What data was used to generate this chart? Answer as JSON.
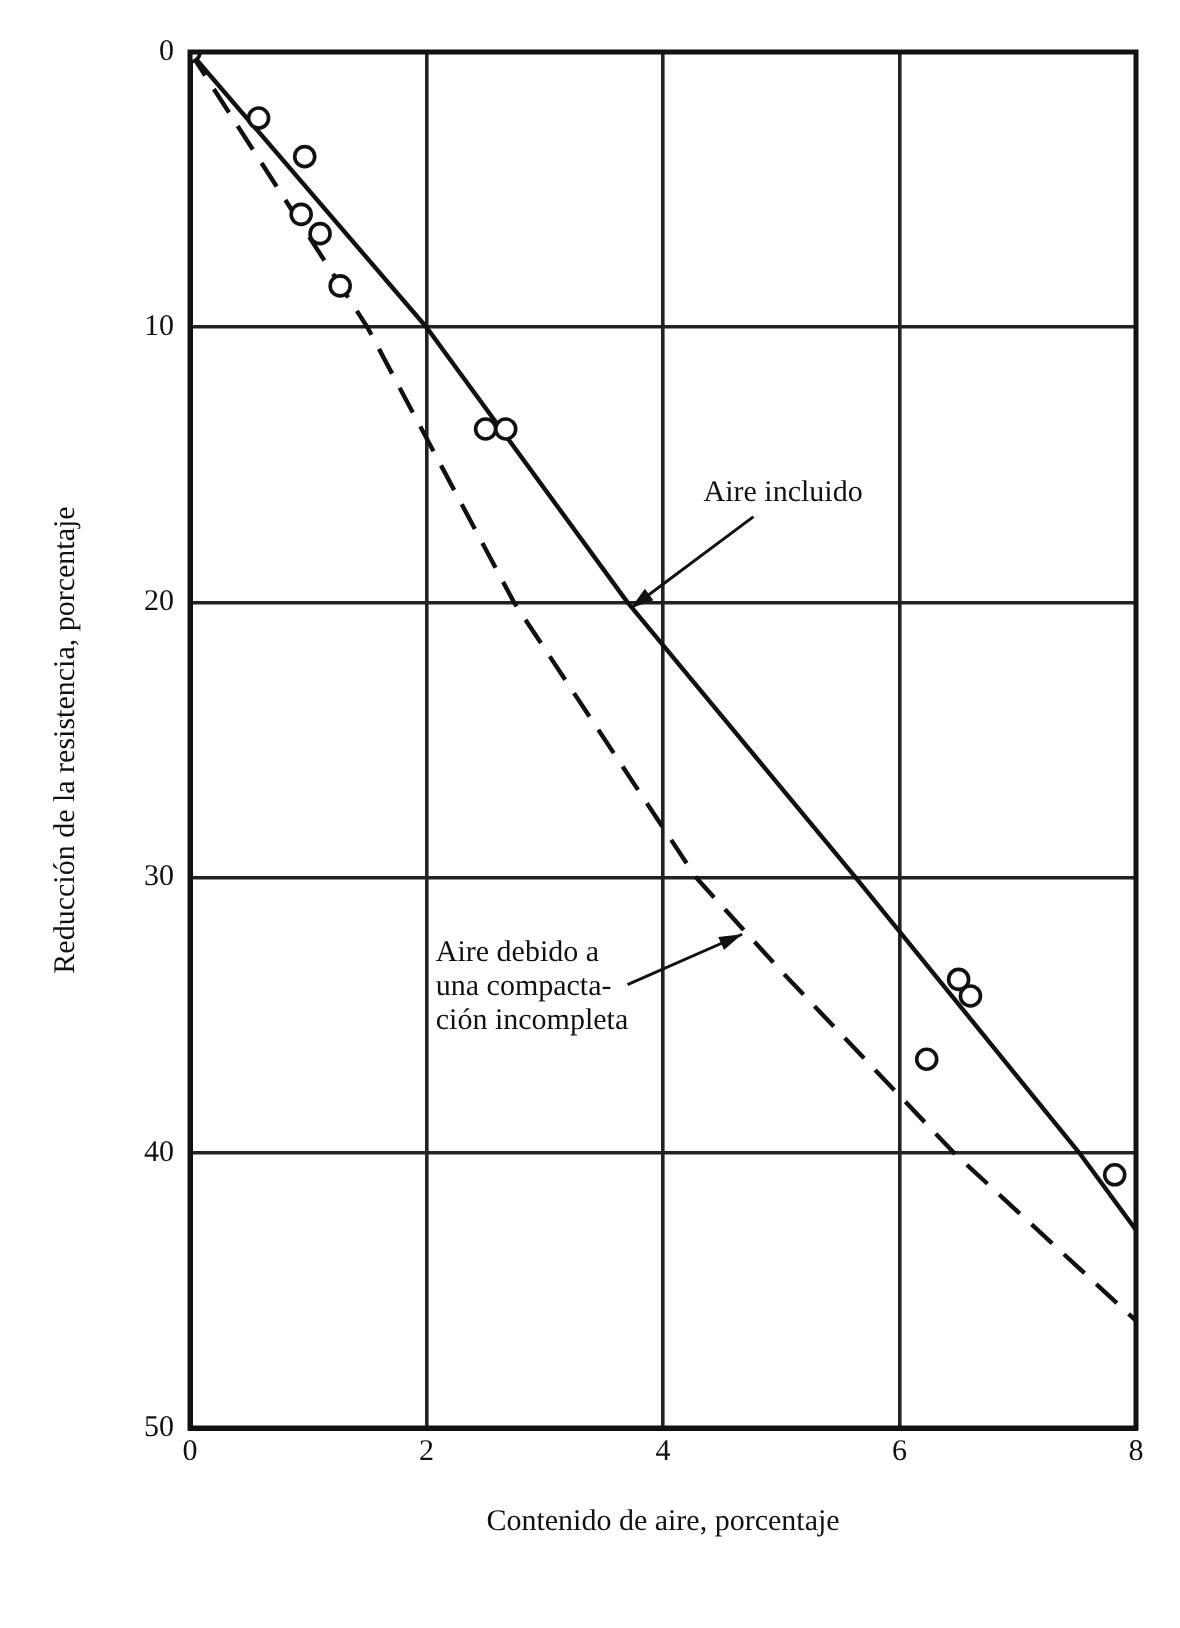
{
  "chart_data": {
    "type": "scatter",
    "xlabel": "Contenido de aire, porcentaje",
    "ylabel": "Reducción de la resistencia, porcentaje",
    "xlim": [
      0,
      8
    ],
    "xticks": [
      0,
      2,
      4,
      6,
      8
    ],
    "ylim": [
      50,
      0
    ],
    "yticks": [
      0,
      10,
      20,
      30,
      40,
      50
    ],
    "grid": true,
    "legend": false,
    "series": [
      {
        "color": "#111111",
        "marker": "circle",
        "x": [
          0,
          0.58,
          0.97,
          0.94,
          1.1,
          1.27,
          2.5,
          2.67,
          6.5,
          6.6,
          6.23,
          7.82
        ],
        "values": [
          0,
          2.4,
          3.8,
          5.9,
          6.6,
          8.5,
          13.7,
          13.7,
          33.7,
          34.3,
          36.6,
          40.8
        ]
      },
      {
        "type": "line",
        "color": "#111111",
        "marker": "none",
        "line_style": "solid",
        "x": [
          0,
          2,
          3.7,
          5.63,
          7.52,
          8
        ],
        "values": [
          0,
          10,
          20,
          30,
          40,
          42.8
        ]
      },
      {
        "type": "line",
        "color": "#111111",
        "marker": "none",
        "line_style": "dashed",
        "x": [
          0,
          1.5,
          2.74,
          4.28,
          5,
          6.46,
          8
        ],
        "values": [
          0,
          10,
          20,
          30,
          33.4,
          40,
          46.1
        ]
      }
    ],
    "annotations": [
      {
        "text": "Aire incluido",
        "x": 3.7,
        "y": 20.3
      },
      {
        "text": "Aire debido a\nuna compacta-\nción incompleta",
        "x": 4.7,
        "y": 32
      }
    ]
  }
}
